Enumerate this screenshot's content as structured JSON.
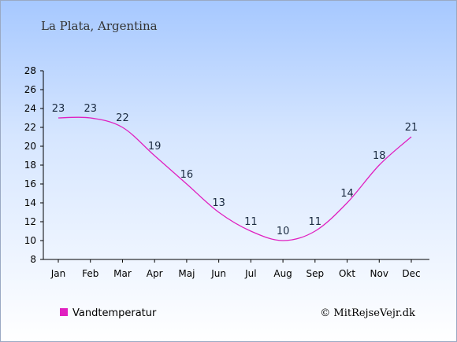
{
  "chart_data": {
    "type": "line",
    "title": "La Plata, Argentina",
    "categories": [
      "Jan",
      "Feb",
      "Mar",
      "Apr",
      "Maj",
      "Jun",
      "Jul",
      "Aug",
      "Sep",
      "Okt",
      "Nov",
      "Dec"
    ],
    "series": [
      {
        "name": "Vandtemperatur",
        "values": [
          23,
          23,
          22,
          19,
          16,
          13,
          11,
          10,
          11,
          14,
          18,
          21
        ],
        "color": "#e020c0"
      }
    ],
    "ylim": [
      8,
      28
    ],
    "yticks": [
      8,
      10,
      12,
      14,
      16,
      18,
      20,
      22,
      24,
      26,
      28
    ],
    "grid": false,
    "legend": "bottom-left",
    "copyright": "© MitRejseVejr.dk"
  }
}
